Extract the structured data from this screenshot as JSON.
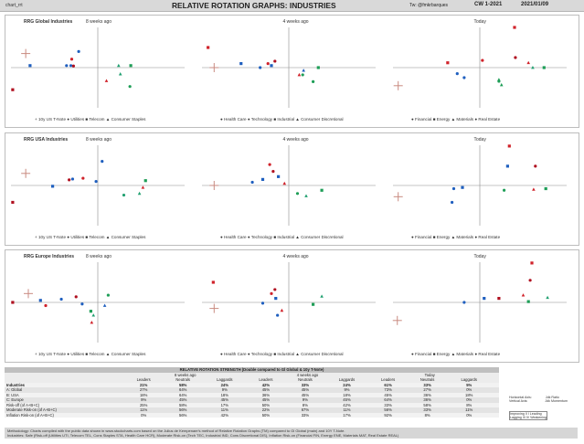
{
  "header": {
    "sheet": "chart_rrt",
    "title": "RELATIVE ROTATION GRAPHS: INDUSTRIES",
    "twitter": "Tw: @fmkrbarques",
    "cw": "CW 1-2021",
    "date": "2021/01/09"
  },
  "colors": {
    "blue": "#1f5fbf",
    "green": "#1e9e57",
    "teal": "#20a070",
    "red": "#d0222a",
    "darkred": "#b01020",
    "tan": "#c98a80"
  },
  "sections": [
    {
      "name": "RRG Global Industries",
      "panels": [
        {
          "title": "RRG Global Industries",
          "subtitle": "8 weeks ago"
        },
        {
          "title": "",
          "subtitle": "4 weeks ago"
        },
        {
          "title": "",
          "subtitle": "Today"
        }
      ],
      "legends": [
        "+ 10y US T-Note   ● Utilities   ■ Telecom   ▲ Consumer Staples",
        "● Health Care   ● Technology   ■ Industrial   ▲ Consumer Discretional",
        "● Financial   ■ Energy   ▲ Materials   ● Real Estate"
      ]
    },
    {
      "name": "RRG USA Industries",
      "panels": [
        {
          "title": "RRG USA Industries",
          "subtitle": "8 weeks ago"
        },
        {
          "title": "",
          "subtitle": "4 weeks ago"
        },
        {
          "title": "",
          "subtitle": "Today"
        }
      ],
      "legends": [
        "+ 10y US T-Note   ● Utilities   ■ Telecom   ▲ Consumer Staples",
        "● Health Care   ● Technology   ■ Industrial   ▲ Consumer Discretional",
        "● Financial   ■ Energy   ▲ Materials   ● Real Estate"
      ]
    },
    {
      "name": "RRG Europe Industries",
      "panels": [
        {
          "title": "RRG Europe Industries",
          "subtitle": "8 weeks ago"
        },
        {
          "title": "",
          "subtitle": "4 weeks ago"
        },
        {
          "title": "",
          "subtitle": "Today"
        }
      ],
      "legends": [
        "+ 10y US T-Note   ● Utilities   ■ Telecom   ▲ Consumer Staples",
        "● Health Care   ● Technology   ■ Industrial   ▲ Consumer Discretional",
        "● Financial   ■ Energy   ▲ Materials   ● Real Estate"
      ]
    }
  ],
  "chart_data": {
    "type": "scatter",
    "xlim": [
      -1,
      1
    ],
    "ylim": [
      -1,
      1
    ],
    "charts": [
      {
        "section": 0,
        "panel": 0,
        "points": [
          {
            "x": -0.83,
            "y": 0.35,
            "shape": "plus",
            "color": "tan"
          },
          {
            "x": -0.98,
            "y": -0.55,
            "shape": "square",
            "color": "darkred"
          },
          {
            "x": -0.78,
            "y": 0.05,
            "shape": "square",
            "color": "blue"
          },
          {
            "x": -0.36,
            "y": 0.05,
            "shape": "circle",
            "color": "blue"
          },
          {
            "x": -0.31,
            "y": 0.05,
            "shape": "circle",
            "color": "blue"
          },
          {
            "x": -0.3,
            "y": 0.21,
            "shape": "circle",
            "color": "red"
          },
          {
            "x": -0.28,
            "y": 0.04,
            "shape": "circle",
            "color": "darkred"
          },
          {
            "x": -0.22,
            "y": 0.4,
            "shape": "circle",
            "color": "blue"
          },
          {
            "x": 0.24,
            "y": 0.05,
            "shape": "triangle",
            "color": "teal"
          },
          {
            "x": 0.26,
            "y": -0.16,
            "shape": "triangle",
            "color": "teal"
          },
          {
            "x": 0.1,
            "y": -0.33,
            "shape": "triangle",
            "color": "red"
          },
          {
            "x": 0.38,
            "y": 0.05,
            "shape": "square",
            "color": "green"
          },
          {
            "x": 0.37,
            "y": -0.47,
            "shape": "circle",
            "color": "green"
          }
        ]
      },
      {
        "section": 0,
        "panel": 1,
        "points": [
          {
            "x": -0.86,
            "y": 0.0,
            "shape": "plus",
            "color": "tan"
          },
          {
            "x": -0.93,
            "y": 0.5,
            "shape": "square",
            "color": "red"
          },
          {
            "x": -0.55,
            "y": 0.1,
            "shape": "square",
            "color": "blue"
          },
          {
            "x": -0.33,
            "y": 0.0,
            "shape": "circle",
            "color": "blue"
          },
          {
            "x": -0.24,
            "y": 0.1,
            "shape": "circle",
            "color": "red"
          },
          {
            "x": -0.16,
            "y": 0.16,
            "shape": "circle",
            "color": "darkred"
          },
          {
            "x": -0.2,
            "y": 0.05,
            "shape": "square",
            "color": "blue"
          },
          {
            "x": 0.12,
            "y": -0.18,
            "shape": "triangle",
            "color": "red"
          },
          {
            "x": 0.16,
            "y": -0.18,
            "shape": "circle",
            "color": "green"
          },
          {
            "x": 0.17,
            "y": -0.07,
            "shape": "triangle",
            "color": "blue"
          },
          {
            "x": 0.28,
            "y": -0.35,
            "shape": "circle",
            "color": "green"
          },
          {
            "x": 0.34,
            "y": 0.0,
            "shape": "square",
            "color": "green"
          }
        ]
      },
      {
        "section": 0,
        "panel": 2,
        "points": [
          {
            "x": -0.94,
            "y": -0.45,
            "shape": "plus",
            "color": "tan"
          },
          {
            "x": 0.4,
            "y": 1.0,
            "shape": "square",
            "color": "red"
          },
          {
            "x": 0.41,
            "y": 0.25,
            "shape": "circle",
            "color": "darkred"
          },
          {
            "x": -0.37,
            "y": 0.12,
            "shape": "square",
            "color": "red"
          },
          {
            "x": -0.26,
            "y": -0.15,
            "shape": "circle",
            "color": "blue"
          },
          {
            "x": -0.18,
            "y": -0.25,
            "shape": "circle",
            "color": "blue"
          },
          {
            "x": 0.03,
            "y": 0.18,
            "shape": "circle",
            "color": "red"
          },
          {
            "x": 0.22,
            "y": -0.34,
            "shape": "circle",
            "color": "green"
          },
          {
            "x": 0.22,
            "y": -0.3,
            "shape": "triangle",
            "color": "green"
          },
          {
            "x": 0.25,
            "y": -0.43,
            "shape": "triangle",
            "color": "green"
          },
          {
            "x": 0.56,
            "y": 0.12,
            "shape": "triangle",
            "color": "red"
          },
          {
            "x": 0.61,
            "y": 0.0,
            "shape": "triangle",
            "color": "teal"
          },
          {
            "x": 0.74,
            "y": 0.0,
            "shape": "square",
            "color": "green"
          }
        ]
      },
      {
        "section": 1,
        "panel": 0,
        "points": [
          {
            "x": -0.83,
            "y": 0.3,
            "shape": "plus",
            "color": "tan"
          },
          {
            "x": -0.98,
            "y": -0.42,
            "shape": "square",
            "color": "darkred"
          },
          {
            "x": -0.52,
            "y": -0.02,
            "shape": "square",
            "color": "blue"
          },
          {
            "x": -0.33,
            "y": 0.14,
            "shape": "circle",
            "color": "darkred"
          },
          {
            "x": -0.29,
            "y": 0.16,
            "shape": "circle",
            "color": "blue"
          },
          {
            "x": -0.17,
            "y": 0.18,
            "shape": "circle",
            "color": "red"
          },
          {
            "x": -0.02,
            "y": 0.1,
            "shape": "circle",
            "color": "blue"
          },
          {
            "x": 0.05,
            "y": 0.6,
            "shape": "circle",
            "color": "blue"
          },
          {
            "x": 0.3,
            "y": -0.24,
            "shape": "circle",
            "color": "teal"
          },
          {
            "x": 0.48,
            "y": -0.2,
            "shape": "triangle",
            "color": "teal"
          },
          {
            "x": 0.52,
            "y": -0.05,
            "shape": "triangle",
            "color": "red"
          },
          {
            "x": 0.55,
            "y": 0.12,
            "shape": "square",
            "color": "green"
          }
        ]
      },
      {
        "section": 1,
        "panel": 1,
        "points": [
          {
            "x": -0.86,
            "y": 0.0,
            "shape": "plus",
            "color": "tan"
          },
          {
            "x": -0.42,
            "y": 0.08,
            "shape": "circle",
            "color": "blue"
          },
          {
            "x": -0.3,
            "y": 0.15,
            "shape": "square",
            "color": "blue"
          },
          {
            "x": -0.22,
            "y": 0.52,
            "shape": "circle",
            "color": "red"
          },
          {
            "x": -0.18,
            "y": 0.35,
            "shape": "circle",
            "color": "darkred"
          },
          {
            "x": -0.12,
            "y": 0.22,
            "shape": "square",
            "color": "blue"
          },
          {
            "x": -0.05,
            "y": 0.05,
            "shape": "triangle",
            "color": "red"
          },
          {
            "x": 0.1,
            "y": -0.2,
            "shape": "circle",
            "color": "green"
          },
          {
            "x": 0.2,
            "y": -0.26,
            "shape": "triangle",
            "color": "teal"
          },
          {
            "x": 0.38,
            "y": -0.12,
            "shape": "square",
            "color": "green"
          }
        ]
      },
      {
        "section": 1,
        "panel": 2,
        "points": [
          {
            "x": -0.94,
            "y": -0.28,
            "shape": "plus",
            "color": "tan"
          },
          {
            "x": 0.34,
            "y": 0.98,
            "shape": "square",
            "color": "red"
          },
          {
            "x": 0.32,
            "y": 0.48,
            "shape": "square",
            "color": "blue"
          },
          {
            "x": 0.64,
            "y": 0.48,
            "shape": "circle",
            "color": "darkred"
          },
          {
            "x": -0.3,
            "y": -0.08,
            "shape": "circle",
            "color": "blue"
          },
          {
            "x": -0.2,
            "y": -0.05,
            "shape": "square",
            "color": "blue"
          },
          {
            "x": -0.32,
            "y": -0.42,
            "shape": "circle",
            "color": "blue"
          },
          {
            "x": 0.28,
            "y": -0.12,
            "shape": "circle",
            "color": "green"
          },
          {
            "x": 0.62,
            "y": -0.1,
            "shape": "triangle",
            "color": "red"
          },
          {
            "x": 0.76,
            "y": -0.08,
            "shape": "square",
            "color": "green"
          }
        ]
      },
      {
        "section": 2,
        "panel": 0,
        "points": [
          {
            "x": -0.8,
            "y": 0.22,
            "shape": "plus",
            "color": "tan"
          },
          {
            "x": -0.98,
            "y": 0.0,
            "shape": "square",
            "color": "darkred"
          },
          {
            "x": -0.66,
            "y": 0.05,
            "shape": "square",
            "color": "blue"
          },
          {
            "x": -0.6,
            "y": -0.08,
            "shape": "circle",
            "color": "red"
          },
          {
            "x": -0.42,
            "y": 0.08,
            "shape": "circle",
            "color": "blue"
          },
          {
            "x": -0.25,
            "y": 0.14,
            "shape": "circle",
            "color": "darkred"
          },
          {
            "x": -0.18,
            "y": -0.04,
            "shape": "circle",
            "color": "blue"
          },
          {
            "x": 0.08,
            "y": -0.08,
            "shape": "triangle",
            "color": "blue"
          },
          {
            "x": 0.12,
            "y": 0.18,
            "shape": "circle",
            "color": "green"
          },
          {
            "x": -0.05,
            "y": -0.32,
            "shape": "triangle",
            "color": "teal"
          },
          {
            "x": -0.07,
            "y": -0.5,
            "shape": "triangle",
            "color": "red"
          },
          {
            "x": -0.08,
            "y": -0.22,
            "shape": "square",
            "color": "green"
          }
        ]
      },
      {
        "section": 2,
        "panel": 1,
        "points": [
          {
            "x": -0.86,
            "y": -0.15,
            "shape": "plus",
            "color": "tan"
          },
          {
            "x": -0.87,
            "y": 0.5,
            "shape": "square",
            "color": "red"
          },
          {
            "x": -0.3,
            "y": -0.02,
            "shape": "circle",
            "color": "blue"
          },
          {
            "x": -0.2,
            "y": 0.22,
            "shape": "circle",
            "color": "red"
          },
          {
            "x": -0.16,
            "y": 0.32,
            "shape": "circle",
            "color": "darkred"
          },
          {
            "x": -0.15,
            "y": 0.1,
            "shape": "square",
            "color": "blue"
          },
          {
            "x": -0.13,
            "y": -0.32,
            "shape": "circle",
            "color": "blue"
          },
          {
            "x": -0.08,
            "y": -0.2,
            "shape": "triangle",
            "color": "red"
          },
          {
            "x": 0.28,
            "y": -0.05,
            "shape": "square",
            "color": "green"
          },
          {
            "x": 0.38,
            "y": 0.15,
            "shape": "triangle",
            "color": "teal"
          }
        ]
      },
      {
        "section": 2,
        "panel": 2,
        "points": [
          {
            "x": -0.95,
            "y": -0.45,
            "shape": "plus",
            "color": "tan"
          },
          {
            "x": 0.6,
            "y": 0.98,
            "shape": "square",
            "color": "red"
          },
          {
            "x": 0.58,
            "y": 0.55,
            "shape": "circle",
            "color": "darkred"
          },
          {
            "x": -0.18,
            "y": 0.0,
            "shape": "circle",
            "color": "blue"
          },
          {
            "x": 0.05,
            "y": 0.1,
            "shape": "square",
            "color": "blue"
          },
          {
            "x": 0.22,
            "y": 0.1,
            "shape": "square",
            "color": "darkred"
          },
          {
            "x": 0.5,
            "y": 0.18,
            "shape": "triangle",
            "color": "red"
          },
          {
            "x": 0.56,
            "y": 0.02,
            "shape": "square",
            "color": "green"
          },
          {
            "x": 0.78,
            "y": 0.12,
            "shape": "triangle",
            "color": "teal"
          }
        ]
      }
    ]
  },
  "table": {
    "caption": "RELATIVE ROTATION STRENGTH (Double compared to Gl Global & 10y T-Note)",
    "groups": [
      "8 weeks ago",
      "4 weeks ago",
      "Today"
    ],
    "cols": [
      "Leaders",
      "Neutrals",
      "Laggards"
    ],
    "rows": [
      {
        "label": "Industries",
        "bold": true,
        "v": [
          "21%",
          "58%",
          "24%",
          "42%",
          "33%",
          "24%",
          "61%",
          "33%",
          "5%"
        ]
      },
      {
        "label": "A: Global",
        "bold": false,
        "v": [
          "27%",
          "64%",
          "9%",
          "45%",
          "45%",
          "9%",
          "73%",
          "27%",
          "0%"
        ]
      },
      {
        "label": "B: USA",
        "bold": false,
        "v": [
          "18%",
          "64%",
          "18%",
          "36%",
          "45%",
          "18%",
          "45%",
          "36%",
          "18%"
        ]
      },
      {
        "label": "C: Europe",
        "bold": false,
        "v": [
          "9%",
          "45%",
          "45%",
          "45%",
          "9%",
          "45%",
          "64%",
          "36%",
          "0%"
        ]
      },
      {
        "label": "Risk-off (of A+B+C)",
        "bold": false,
        "v": [
          "25%",
          "58%",
          "17%",
          "50%",
          "8%",
          "42%",
          "33%",
          "58%",
          "8%"
        ]
      },
      {
        "label": "Moderate Risk-on (of A+B+C)",
        "bold": false,
        "v": [
          "11%",
          "56%",
          "11%",
          "22%",
          "67%",
          "11%",
          "56%",
          "33%",
          "11%"
        ]
      },
      {
        "label": "Inflation Risk-on (of A+B+C)",
        "bold": false,
        "v": [
          "0%",
          "56%",
          "42%",
          "50%",
          "33%",
          "17%",
          "92%",
          "8%",
          "0%"
        ]
      }
    ]
  },
  "side": {
    "h_axis": "Horizontal Axis:",
    "h_axis_val": "Jdk Ratio",
    "v_axis": "Vertical Axis:",
    "v_axis_val": "Jdk Momentum",
    "q2": "Improving II",
    "q1": "I Leading",
    "q3": "Lagging III",
    "q4": "IV Weakening"
  },
  "notes": {
    "line1": "Methodology: Charts compiled with the public data shown in www.stockcharts.com based on the Julius de Kempenaer's method of Relative Rotation Graphs (TM) compared to Gl Global (main) and 10Y T-Note.",
    "line2": "Industries: Safe (Risk-off (Utilities UTI, Telecom TEL, Cons Staples STA, Health Care HCR), Moderate Risk-on (Tech TEC, Industrial IND, Cons Discretional DIS), Inflation Risk-on (Financial FIN, Energy ENE, Materials MAT, Real Estate REAL)"
  }
}
